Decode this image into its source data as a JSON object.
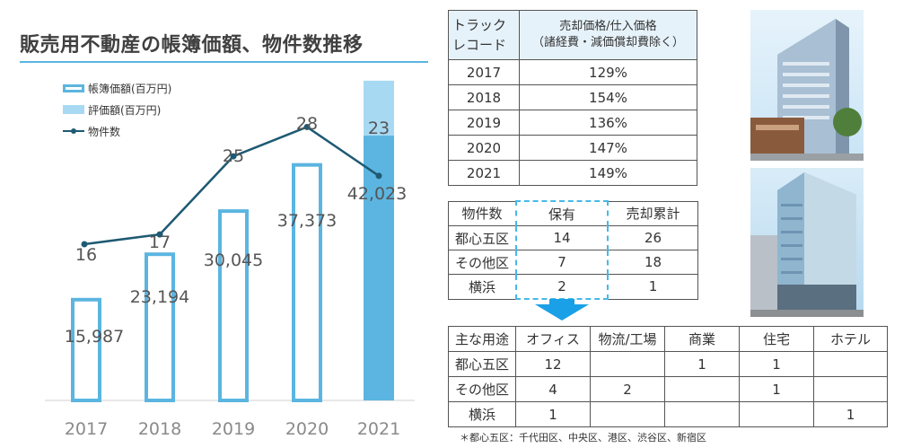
{
  "title": "販売用不動産の帳簿価額、物件数推移",
  "legend": {
    "book_value": "帳簿価額(百万円)",
    "appraised": "評価額(百万円)",
    "properties": "物件数"
  },
  "chart_data": {
    "type": "bar+line",
    "categories": [
      "2017",
      "2018",
      "2019",
      "2020",
      "2021"
    ],
    "series": [
      {
        "name": "帳簿価額(百万円)",
        "type": "bar",
        "values": [
          15987,
          23194,
          30045,
          37373,
          42023
        ],
        "labels": [
          "15,987",
          "23,194",
          "30,045",
          "37,373",
          "42,023"
        ]
      },
      {
        "name": "物件数",
        "type": "line",
        "values": [
          16,
          17,
          25,
          28,
          23
        ]
      }
    ],
    "appraised_2021": 50740,
    "bar_ylim": [
      0,
      53000
    ],
    "line_ylim": [
      0,
      34.2
    ]
  },
  "colors": {
    "bar_outline": "#5bb5e0",
    "bar_fill_2021": "#5bb5e0",
    "appraised_fill": "#a8d9f3",
    "line": "#1e5a73",
    "accent": "#1aa0e6"
  },
  "track_record": {
    "header_col1": "トラック\nレコード",
    "header_col2": "売却価格/仕入価格\n（諸経費・減価償却費除く）",
    "rows": [
      {
        "year": "2017",
        "value": "129%"
      },
      {
        "year": "2018",
        "value": "154%"
      },
      {
        "year": "2019",
        "value": "136%"
      },
      {
        "year": "2020",
        "value": "147%"
      },
      {
        "year": "2021",
        "value": "149%"
      }
    ]
  },
  "property_count": {
    "headers": [
      "物件数",
      "保有",
      "売却累計"
    ],
    "rows": [
      [
        "都心五区",
        "14",
        "26"
      ],
      [
        "その他区",
        "7",
        "18"
      ],
      [
        "横浜",
        "2",
        "1"
      ]
    ]
  },
  "usage": {
    "headers": [
      "主な用途",
      "オフィス",
      "物流/工場",
      "商業",
      "住宅",
      "ホテル"
    ],
    "rows": [
      [
        "都心五区",
        "12",
        "",
        "1",
        "1",
        ""
      ],
      [
        "その他区",
        "4",
        "2",
        "",
        "1",
        ""
      ],
      [
        "横浜",
        "1",
        "",
        "",
        "",
        "1"
      ]
    ]
  },
  "footnote": "＊都心五区：千代田区、中央区、港区、渋谷区、新宿区",
  "photos": [
    "building-photo-1",
    "building-photo-2"
  ]
}
